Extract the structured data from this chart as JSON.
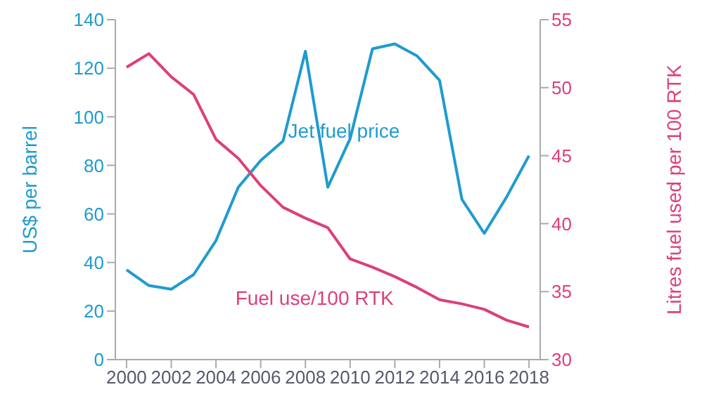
{
  "chart_data": {
    "type": "line",
    "x": [
      2000,
      2001,
      2002,
      2003,
      2004,
      2005,
      2006,
      2007,
      2008,
      2009,
      2010,
      2011,
      2012,
      2013,
      2014,
      2015,
      2016,
      2017,
      2018
    ],
    "xlim": [
      1999.5,
      2018.5
    ],
    "xticks": [
      2000,
      2002,
      2004,
      2006,
      2008,
      2010,
      2012,
      2014,
      2016,
      2018
    ],
    "ylabel": "US$ per barrel",
    "y2label": "Litres fuel used per 100 RTK",
    "ylim": [
      0,
      140
    ],
    "yticks": [
      0,
      20,
      40,
      60,
      80,
      100,
      120,
      140
    ],
    "y2lim": [
      30,
      55
    ],
    "y2ticks": [
      30,
      35,
      40,
      45,
      50,
      55
    ],
    "marker": "none",
    "line_style": "solid",
    "series": [
      {
        "name": "Jet fuel price",
        "color": "#1f9bcf",
        "values": [
          37,
          30.5,
          29,
          35,
          49,
          71,
          82,
          90,
          127,
          71,
          91,
          128,
          130,
          125,
          115,
          66,
          52,
          67,
          84
        ]
      },
      {
        "name": "Fuel use/100 RTK",
        "color": "#dc3f7c",
        "axis": "y2",
        "values": [
          51.5,
          52.5,
          50.8,
          49.5,
          46.2,
          44.8,
          42.8,
          41.2,
          40.4,
          39.7,
          37.4,
          36.8,
          36.1,
          35.3,
          34.4,
          34.1,
          33.7,
          32.9,
          32.4
        ]
      }
    ]
  }
}
